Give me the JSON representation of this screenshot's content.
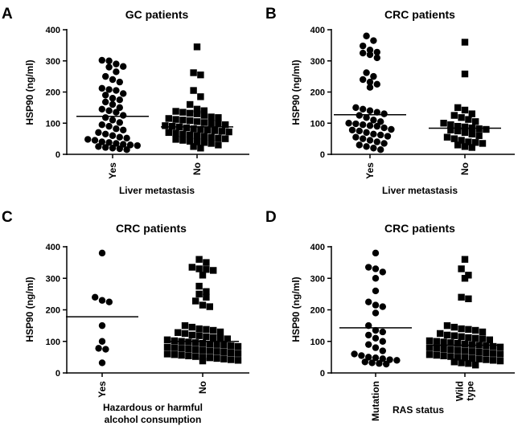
{
  "chart_data": [
    {
      "panel": "A",
      "type": "scatter",
      "title": "GC patients",
      "ylabel": "HSP90 (ng/ml)",
      "xlabel": [
        "Liver metastasis"
      ],
      "ylim": [
        0,
        400
      ],
      "yticks": [
        0,
        100,
        200,
        300,
        400
      ],
      "grid": false,
      "series": [
        {
          "name": "Yes",
          "label": [
            "Yes"
          ],
          "marker": "circle",
          "mean": 122,
          "values": [
            302,
            300,
            290,
            282,
            280,
            265,
            250,
            240,
            232,
            212,
            208,
            205,
            195,
            190,
            180,
            175,
            168,
            160,
            150,
            145,
            140,
            135,
            125,
            118,
            110,
            102,
            95,
            90,
            82,
            78,
            70,
            65,
            60,
            55,
            52,
            48,
            45,
            40,
            38,
            35,
            32,
            30,
            28,
            25,
            22,
            20,
            18,
            15
          ]
        },
        {
          "name": "No",
          "label": [
            "No"
          ],
          "marker": "square",
          "mean": 88,
          "values": [
            345,
            262,
            255,
            205,
            185,
            160,
            145,
            140,
            138,
            135,
            132,
            130,
            125,
            120,
            118,
            115,
            112,
            110,
            108,
            105,
            102,
            100,
            98,
            95,
            92,
            90,
            88,
            85,
            82,
            80,
            78,
            76,
            74,
            72,
            70,
            68,
            65,
            62,
            60,
            58,
            55,
            52,
            50,
            48,
            45,
            42,
            40,
            38,
            35,
            30,
            25,
            20
          ]
        }
      ]
    },
    {
      "panel": "B",
      "type": "scatter",
      "title": "CRC patients",
      "ylabel": "HSP90 (ng/ml)",
      "xlabel": [
        "Liver metastasis"
      ],
      "ylim": [
        0,
        400
      ],
      "yticks": [
        0,
        100,
        200,
        300,
        400
      ],
      "grid": false,
      "series": [
        {
          "name": "Yes",
          "label": [
            "Yes"
          ],
          "marker": "circle",
          "mean": 127,
          "values": [
            380,
            365,
            348,
            335,
            328,
            325,
            320,
            310,
            262,
            250,
            240,
            232,
            225,
            215,
            150,
            145,
            140,
            135,
            130,
            125,
            118,
            110,
            105,
            100,
            98,
            95,
            92,
            90,
            85,
            80,
            78,
            75,
            70,
            65,
            62,
            58,
            55,
            50,
            45,
            40,
            35,
            30,
            25,
            20,
            15
          ]
        },
        {
          "name": "No",
          "label": [
            "No"
          ],
          "marker": "square",
          "mean": 84,
          "values": [
            360,
            258,
            150,
            142,
            130,
            125,
            118,
            112,
            105,
            100,
            95,
            90,
            88,
            85,
            82,
            80,
            78,
            75,
            70,
            65,
            60,
            55,
            50,
            45,
            40,
            38,
            35,
            30,
            25,
            22
          ]
        }
      ]
    },
    {
      "panel": "C",
      "type": "scatter",
      "title": "CRC patients",
      "ylabel": "HSP90 (ng/ml)",
      "xlabel": [
        "Hazardous or harmful",
        "alcohol consumption"
      ],
      "ylim": [
        0,
        400
      ],
      "yticks": [
        0,
        100,
        200,
        300,
        400
      ],
      "grid": false,
      "series": [
        {
          "name": "Yes",
          "label": [
            "Yes"
          ],
          "marker": "circle",
          "mean": 178,
          "values": [
            380,
            240,
            230,
            225,
            150,
            100,
            78,
            75,
            32
          ]
        },
        {
          "name": "No",
          "label": [
            "No"
          ],
          "marker": "square",
          "mean": 100,
          "values": [
            360,
            350,
            335,
            330,
            328,
            325,
            310,
            275,
            258,
            250,
            240,
            228,
            215,
            210,
            150,
            145,
            140,
            138,
            135,
            130,
            128,
            125,
            120,
            118,
            115,
            112,
            110,
            108,
            105,
            102,
            100,
            98,
            96,
            94,
            92,
            90,
            88,
            86,
            84,
            82,
            80,
            78,
            76,
            74,
            72,
            70,
            68,
            66,
            64,
            62,
            60,
            58,
            56,
            54,
            52,
            50,
            48,
            46,
            44,
            42,
            40,
            38
          ]
        }
      ]
    },
    {
      "panel": "D",
      "type": "scatter",
      "title": "CRC patients",
      "ylabel": "HSP90 (ng/ml)",
      "xlabel": [
        "RAS status"
      ],
      "ylim": [
        0,
        400
      ],
      "yticks": [
        0,
        100,
        200,
        300,
        400
      ],
      "grid": false,
      "series": [
        {
          "name": "Mutation",
          "label": [
            "Mutation"
          ],
          "marker": "circle",
          "mean": 143,
          "values": [
            380,
            335,
            330,
            320,
            300,
            260,
            225,
            215,
            210,
            190,
            150,
            135,
            130,
            120,
            110,
            100,
            90,
            80,
            70,
            60,
            55,
            50,
            48,
            45,
            42,
            40,
            35,
            32,
            30,
            28
          ]
        },
        {
          "name": "Wild type",
          "label": [
            "Wild",
            "type"
          ],
          "marker": "square",
          "mean": 88,
          "values": [
            360,
            330,
            310,
            300,
            240,
            235,
            150,
            145,
            140,
            138,
            135,
            130,
            125,
            120,
            118,
            115,
            112,
            110,
            108,
            105,
            102,
            100,
            98,
            96,
            94,
            92,
            90,
            88,
            86,
            84,
            82,
            80,
            78,
            76,
            74,
            72,
            70,
            68,
            66,
            64,
            62,
            60,
            58,
            56,
            54,
            52,
            50,
            48,
            46,
            44,
            42,
            40,
            38,
            35,
            32,
            30,
            25
          ]
        }
      ]
    }
  ]
}
